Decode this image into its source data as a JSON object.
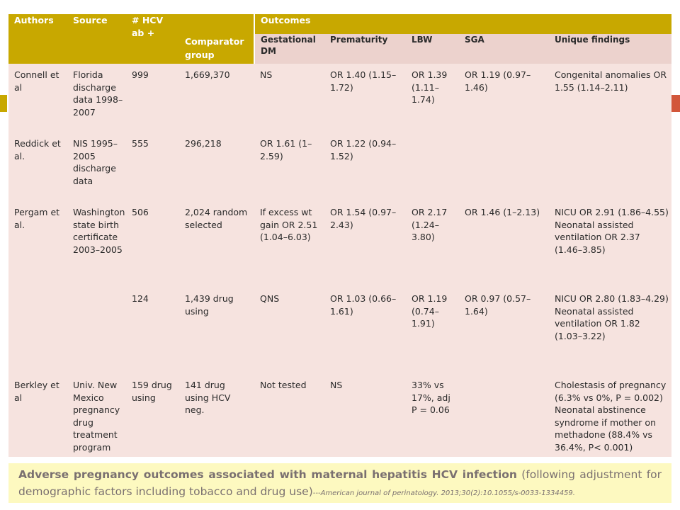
{
  "header": {
    "authors": "Authors",
    "source": "Source",
    "hcv_ab": "# HCV ab +",
    "outcomes": "Outcomes",
    "comparator": "Comparator group",
    "gdm": "Gestational DM",
    "prematurity": "Prematurity",
    "lbw": "LBW",
    "sga": "SGA",
    "unique": "Unique findings"
  },
  "rows": [
    {
      "authors": "Connell et al",
      "source": "Florida discharge data 1998–2007",
      "hcv": "999",
      "comparator": "1,669,370",
      "gdm": "NS",
      "prematurity": "OR 1.40 (1.15–1.72)",
      "lbw": "OR 1.39 (1.11–1.74)",
      "sga": "OR 1.19 (0.97–1.46)",
      "unique": "Congenital anomalies OR 1.55 (1.14–2.11)"
    },
    {
      "authors": "Reddick et al.",
      "source": "NIS 1995–2005 discharge data",
      "hcv": "555",
      "comparator": "296,218",
      "gdm": "OR 1.61 (1–2.59)",
      "prematurity": "OR 1.22 (0.94–1.52)",
      "lbw": "",
      "sga": "",
      "unique": ""
    },
    {
      "authors": "Pergam et al.",
      "source": "Washington state birth certificate 2003–2005",
      "hcv": "506",
      "comparator": "2,024 random selected",
      "gdm": "If excess wt gain OR 2.51 (1.04–6.03)",
      "prematurity": "OR 1.54 (0.97–2.43)",
      "lbw": "OR 2.17 (1.24–3.80)",
      "sga": "OR 1.46 (1–2.13)",
      "unique": "NICU OR 2.91 (1.86–4.55) Neonatal assisted ventilation OR 2.37 (1.46–3.85)"
    },
    {
      "authors": "",
      "source": "",
      "hcv": "124",
      "comparator": "1,439 drug using",
      "gdm": "QNS",
      "prematurity": "OR 1.03 (0.66–1.61)",
      "lbw": "OR 1.19 (0.74–1.91)",
      "sga": "OR 0.97 (0.57–1.64)",
      "unique": "NICU OR 2.80 (1.83–4.29) Neonatal assisted ventilation OR 1.82 (1.03–3.22)"
    },
    {
      "authors": "Berkley et al",
      "source": "Univ. New Mexico pregnancy drug treatment program",
      "hcv": "159 drug using",
      "comparator": "141 drug using HCV neg.",
      "gdm": "Not tested",
      "prematurity": "NS",
      "lbw": "33% vs 17%, adj P = 0.06",
      "sga": "",
      "unique": "Cholestasis of pregnancy (6.3% vs 0%, P = 0.002) Neonatal abstinence syndrome if mother on methadone (88.4% vs 36.4%, P< 0.001)"
    }
  ],
  "caption": {
    "bold": "Adverse pregnancy outcomes associated with maternal hepatitis HCV infection",
    "normal": " (following adjustment for demographic factors including tobacco and drug use)",
    "cite": "---American journal of perinatology. 2013;30(2):10.1055/s-0033-1334459."
  },
  "colors": {
    "header_gold": "#c8a800",
    "subheader_pink": "#ecd2cd",
    "cell_pink": "#f6e3df",
    "caption_yellow": "#fdf9c0",
    "accent_red": "#d2563a"
  }
}
